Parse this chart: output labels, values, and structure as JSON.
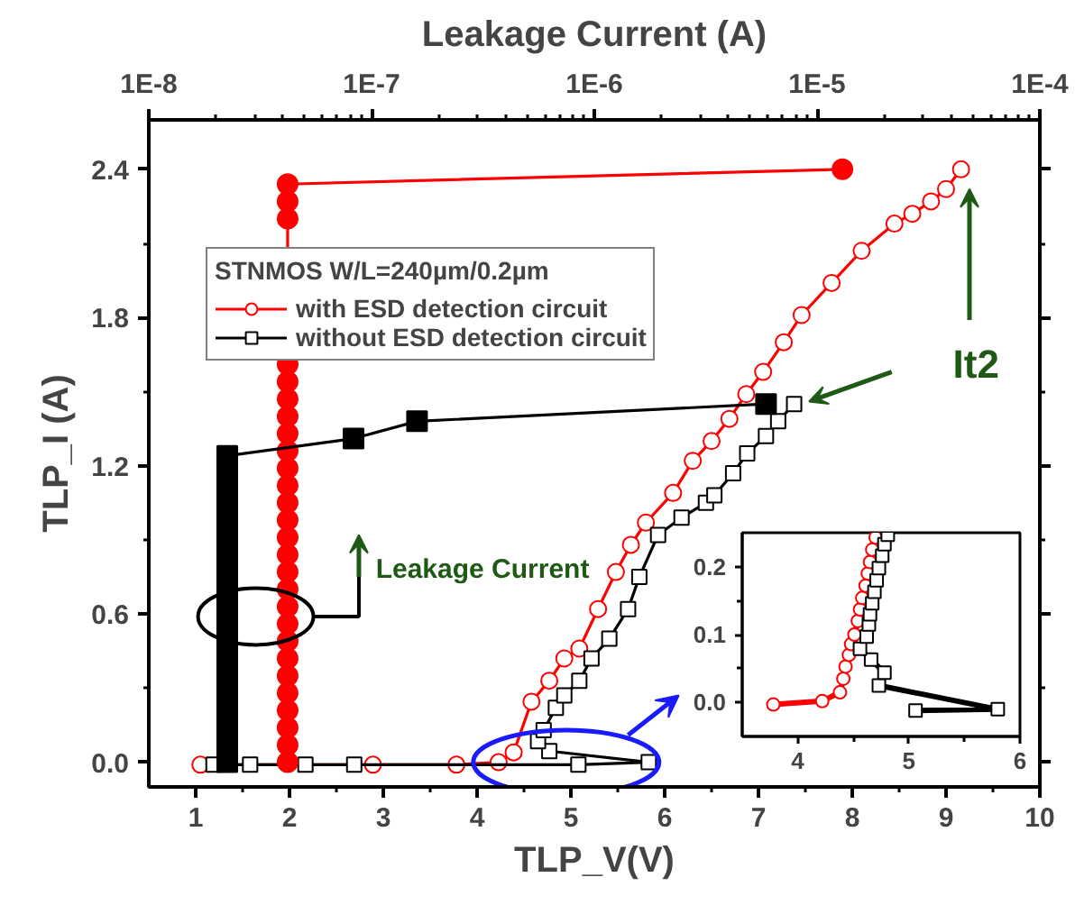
{
  "chart_data": [
    {
      "type": "line",
      "xlabel": "TLP_V(V)",
      "ylabel": "TLP_I (A)",
      "x2label": "Leakage Current (A)",
      "legend_title": "STNMOS W/L=240µm/0.2µm",
      "legend": "top left",
      "grid": false,
      "log": "x2",
      "xlim": [
        0.5,
        10
      ],
      "xticks": [
        1,
        2,
        3,
        4,
        5,
        6,
        7,
        8,
        9,
        10
      ],
      "ylim": [
        -0.1,
        2.6
      ],
      "yticks": [
        {
          "value": 0,
          "label": "0.0"
        },
        {
          "value": 0.6,
          "label": "0.6"
        },
        {
          "value": 1.2,
          "label": "1.2"
        },
        1.8,
        2.4
      ],
      "x2lim": [
        1e-08,
        0.0001
      ],
      "x2ticks": [
        {
          "value": 1e-08,
          "label": "1E-8"
        },
        {
          "value": 1e-07,
          "label": "1E-7"
        },
        {
          "value": 1e-06,
          "label": "1E-6"
        },
        {
          "value": 1e-05,
          "label": "1E-5"
        },
        {
          "value": 0.0001,
          "label": "1E-4"
        }
      ],
      "annotations": [
        "Leakage Current",
        "It2"
      ],
      "series": [
        {
          "name": "with ESD detection circuit",
          "color": "#ff0000",
          "marker": "circle",
          "x": [
            1.05,
            2.89,
            3.78,
            4.23,
            4.39,
            4.58,
            4.77,
            4.93,
            5.09,
            5.29,
            5.48,
            5.64,
            5.8,
            6.09,
            6.3,
            6.5,
            6.69,
            6.87,
            7.05,
            7.27,
            7.46,
            7.78,
            8.1,
            8.45,
            8.64,
            8.84,
            9.0,
            9.16
          ],
          "values": [
            -0.01,
            -0.01,
            -0.01,
            0.0,
            0.04,
            0.245,
            0.33,
            0.42,
            0.46,
            0.62,
            0.77,
            0.88,
            0.97,
            1.09,
            1.22,
            1.3,
            1.39,
            1.49,
            1.58,
            1.7,
            1.81,
            1.94,
            2.07,
            2.18,
            2.22,
            2.27,
            2.32,
            2.4
          ]
        },
        {
          "name": "without ESD detection circuit",
          "color": "#000000",
          "marker": "square",
          "x": [
            1.19,
            1.58,
            2.17,
            2.69,
            5.08,
            5.83,
            4.77,
            4.65,
            4.71,
            4.84,
            4.93,
            5.09,
            5.22,
            5.41,
            5.61,
            5.73,
            5.93,
            6.18,
            6.44,
            6.53,
            6.73,
            6.88,
            7.08,
            7.21,
            7.38
          ],
          "values": [
            -0.01,
            -0.01,
            -0.01,
            -0.01,
            -0.01,
            0.0,
            0.045,
            0.085,
            0.13,
            0.22,
            0.27,
            0.33,
            0.42,
            0.5,
            0.62,
            0.75,
            0.92,
            0.99,
            1.05,
            1.08,
            1.17,
            1.25,
            1.32,
            1.38,
            1.45
          ]
        },
        {
          "color": "#ff0000",
          "marker": "circle",
          "axis": "x2",
          "x": [
            4.2e-08,
            4.2e-08,
            4.2e-08,
            4.2e-08,
            4.2e-08,
            4.2e-08,
            4.2e-08,
            4.2e-08,
            4.2e-08,
            4.2e-08,
            4.2e-08,
            4.2e-08,
            4.2e-08,
            4.2e-08,
            4.2e-08,
            4.2e-08,
            4.2e-08,
            4.2e-08,
            4.2e-08,
            4.2e-08,
            4.2e-08,
            4.2e-08,
            4.2e-08,
            4.2e-08,
            4.2e-08,
            4.2e-08,
            4.2e-08,
            1.3e-05
          ],
          "values": [
            0,
            0.07,
            0.14,
            0.21,
            0.28,
            0.35,
            0.42,
            0.49,
            0.56,
            0.63,
            0.7,
            0.77,
            0.84,
            0.91,
            0.98,
            1.05,
            1.12,
            1.19,
            1.26,
            1.33,
            1.4,
            1.47,
            1.54,
            1.61,
            2.2,
            2.27,
            2.34,
            2.4
          ]
        },
        {
          "color": "#000000",
          "marker": "square",
          "axis": "x2",
          "x": [
            2.25e-08,
            2.25e-08,
            2.25e-08,
            2.25e-08,
            2.25e-08,
            2.25e-08,
            2.25e-08,
            2.25e-08,
            2.25e-08,
            2.25e-08,
            2.25e-08,
            2.25e-08,
            2.25e-08,
            2.25e-08,
            2.25e-08,
            2.25e-08,
            2.25e-08,
            2.25e-08,
            2.25e-08,
            8.3e-08,
            1.6e-07,
            5.9e-06
          ],
          "values": [
            0,
            0.07,
            0.14,
            0.21,
            0.28,
            0.35,
            0.42,
            0.49,
            0.56,
            0.63,
            0.7,
            0.77,
            0.84,
            0.91,
            0.98,
            1.05,
            1.12,
            1.19,
            1.24,
            1.31,
            1.38,
            1.45
          ]
        }
      ]
    },
    {
      "type": "line",
      "xlim": [
        3.5,
        6
      ],
      "xticks": [
        4,
        5,
        6
      ],
      "ylim": [
        -0.05,
        0.25
      ],
      "yticks": [
        {
          "value": 0,
          "label": "0.0"
        },
        0.1,
        0.2
      ],
      "grid": false,
      "series": [
        {
          "color": "#ff0000",
          "marker": "circle",
          "x": [
            3.78,
            4.22,
            4.38,
            4.41,
            4.43,
            4.46,
            4.48,
            4.51,
            4.54,
            4.56,
            4.58,
            4.61,
            4.63,
            4.65,
            4.67,
            4.7
          ],
          "values": [
            -0.003,
            0.002,
            0.015,
            0.035,
            0.053,
            0.07,
            0.086,
            0.1,
            0.12,
            0.137,
            0.154,
            0.172,
            0.19,
            0.207,
            0.225,
            0.243
          ]
        },
        {
          "color": "#000000",
          "marker": "square",
          "x": [
            5.06,
            5.8,
            4.73,
            4.78,
            4.66,
            4.56,
            4.62,
            4.64,
            4.65,
            4.67,
            4.69,
            4.71,
            4.73,
            4.76,
            4.78,
            4.81
          ],
          "values": [
            -0.012,
            -0.01,
            0.025,
            0.044,
            0.063,
            0.079,
            0.097,
            0.115,
            0.13,
            0.146,
            0.163,
            0.18,
            0.198,
            0.216,
            0.233,
            0.247
          ]
        }
      ]
    }
  ]
}
